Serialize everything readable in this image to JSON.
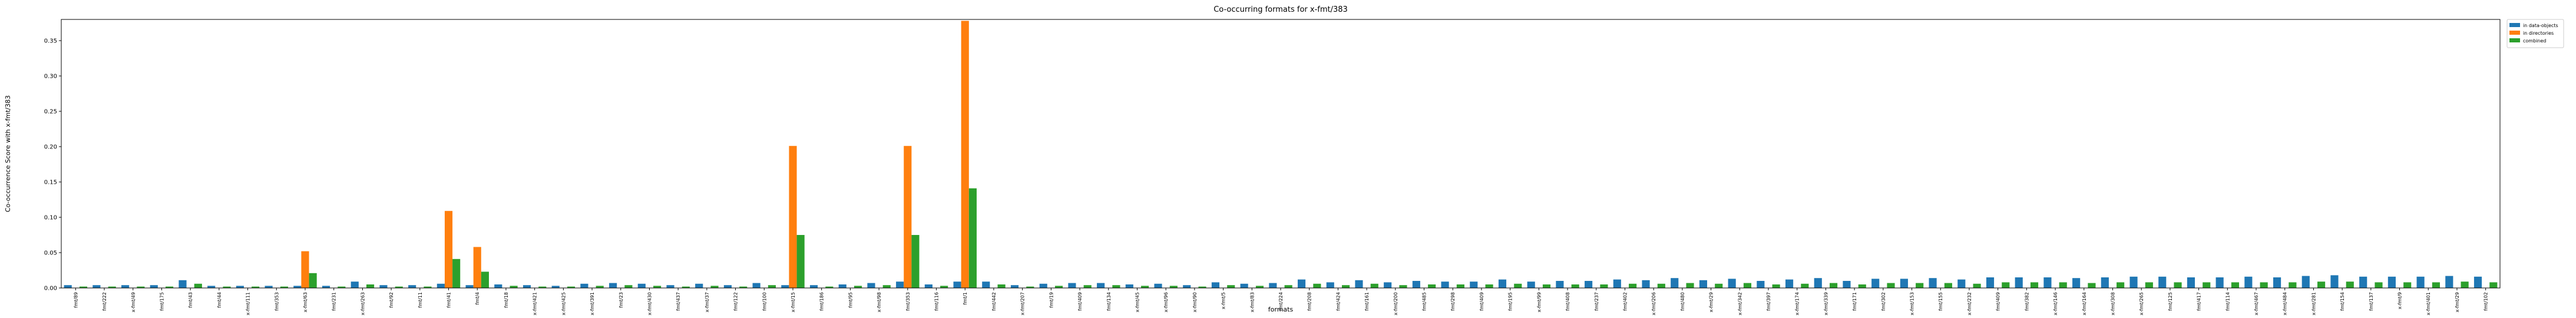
{
  "chart_data": {
    "type": "bar",
    "title": "Co-occurring formats for x-fmt/383",
    "xlabel": "formats",
    "ylabel": "Co-occurrence Score with x-fmt/383",
    "ylim": [
      0,
      0.38
    ],
    "yticks": [
      "0.00",
      "0.05",
      "0.10",
      "0.15",
      "0.20",
      "0.25",
      "0.30",
      "0.35"
    ],
    "ytick_values": [
      0,
      0.05,
      0.1,
      0.15,
      0.2,
      0.25,
      0.3,
      0.35
    ],
    "grid": false,
    "legend_position": "upper-right, outside plot",
    "colors": {
      "in_data_objects": "#1f77b4",
      "in_directories": "#ff7f0e",
      "combined": "#2ca02c"
    },
    "categories": [
      "fmt/89",
      "fmt/222",
      "x-fmt/49",
      "fmt/175",
      "fmt/43",
      "fmt/44",
      "x-fmt/111",
      "fmt/353",
      "x-fmt/63",
      "fmt/231",
      "x-fmt/263",
      "fmt/92",
      "fmt/11",
      "fmt/41",
      "fmt/4",
      "fmt/18",
      "x-fmt/421",
      "x-fmt/425",
      "x-fmt/391",
      "fmt/23",
      "x-fmt/430",
      "fmt/437",
      "x-fmt/37",
      "fmt/122",
      "fmt/100",
      "x-fmt/15",
      "fmt/186",
      "fmt/95",
      "x-fmt/98",
      "fmt/353",
      "fmt/116",
      "fmt/1",
      "fmt/442",
      "x-fmt/207",
      "fmt/19",
      "fmt/409",
      "fmt/134",
      "x-fmt/45",
      "x-fmt/96",
      "x-fmt/90",
      "x-fmt/5",
      "x-fmt/83",
      "fmt/224",
      "fmt/208",
      "fmt/424",
      "fmt/161",
      "x-fmt/200",
      "fmt/485",
      "fmt/298",
      "fmt/409",
      "fmt/195",
      "x-fmt/99",
      "fmt/408",
      "fmt/237",
      "fmt/402",
      "x-fmt/206",
      "fmt/480",
      "x-fmt/29",
      "x-fmt/342",
      "fmt/397",
      "x-fmt/174",
      "x-fmt/339",
      "fmt/171",
      "fmt/302",
      "x-fmt/153",
      "fmt/155",
      "x-fmt/232",
      "fmt/409",
      "fmt/382",
      "x-fmt/146",
      "x-fmt/164",
      "x-fmt/308",
      "x-fmt/265",
      "fmt/125",
      "fmt/417",
      "fmt/114",
      "x-fmt/467",
      "x-fmt/484",
      "x-fmt/281",
      "fmt/154",
      "fmt/137",
      "x-fmt/9",
      "x-fmt/401",
      "x-fmt/29",
      "fmt/102"
    ],
    "series": [
      {
        "name": "in data-objects",
        "values": [
          0.004,
          0.004,
          0.004,
          0.004,
          0.011,
          0.003,
          0.003,
          0.003,
          0.003,
          0.003,
          0.009,
          0.004,
          0.004,
          0.006,
          0.004,
          0.005,
          0.004,
          0.003,
          0.006,
          0.007,
          0.006,
          0.004,
          0.006,
          0.004,
          0.007,
          0.004,
          0.004,
          0.005,
          0.007,
          0.009,
          0.005,
          0.009,
          0.009,
          0.004,
          0.006,
          0.007,
          0.007,
          0.005,
          0.006,
          0.004,
          0.008,
          0.006,
          0.007,
          0.012,
          0.008,
          0.011,
          0.008,
          0.01,
          0.009,
          0.009,
          0.012,
          0.009,
          0.01,
          0.01,
          0.012,
          0.011,
          0.014,
          0.011,
          0.013,
          0.01,
          0.012,
          0.014,
          0.01,
          0.013,
          0.013,
          0.014,
          0.012,
          0.015,
          0.015,
          0.015,
          0.014,
          0.015,
          0.016,
          0.016,
          0.015,
          0.015,
          0.016,
          0.015,
          0.017,
          0.018,
          0.016,
          0.016,
          0.016,
          0.017,
          0.016
        ]
      },
      {
        "name": "in directories",
        "values": [
          0,
          0,
          0,
          0,
          0,
          0,
          0,
          0,
          0.052,
          0,
          0,
          0,
          0,
          0.109,
          0.058,
          0,
          0,
          0,
          0,
          0,
          0,
          0,
          0,
          0,
          0,
          0.201,
          0,
          0,
          0,
          0.201,
          0,
          0.378,
          0,
          0,
          0,
          0,
          0,
          0,
          0,
          0,
          0,
          0,
          0,
          0,
          0,
          0,
          0,
          0,
          0,
          0,
          0,
          0,
          0,
          0,
          0,
          0,
          0,
          0,
          0,
          0,
          0,
          0,
          0,
          0,
          0,
          0,
          0,
          0,
          0,
          0,
          0,
          0,
          0,
          0,
          0,
          0,
          0,
          0,
          0,
          0,
          0,
          0,
          0,
          0,
          0
        ]
      },
      {
        "name": "combined",
        "values": [
          0.002,
          0.002,
          0.002,
          0.002,
          0.006,
          0.002,
          0.002,
          0.002,
          0.021,
          0.002,
          0.005,
          0.002,
          0.002,
          0.041,
          0.023,
          0.003,
          0.002,
          0.002,
          0.003,
          0.004,
          0.003,
          0.002,
          0.003,
          0.002,
          0.004,
          0.075,
          0.002,
          0.003,
          0.004,
          0.075,
          0.003,
          0.141,
          0.005,
          0.002,
          0.003,
          0.004,
          0.004,
          0.003,
          0.003,
          0.002,
          0.004,
          0.003,
          0.004,
          0.006,
          0.004,
          0.006,
          0.004,
          0.005,
          0.005,
          0.005,
          0.006,
          0.005,
          0.005,
          0.005,
          0.006,
          0.006,
          0.007,
          0.006,
          0.007,
          0.005,
          0.006,
          0.007,
          0.005,
          0.007,
          0.007,
          0.007,
          0.006,
          0.008,
          0.008,
          0.008,
          0.007,
          0.008,
          0.008,
          0.008,
          0.008,
          0.008,
          0.008,
          0.008,
          0.009,
          0.009,
          0.008,
          0.008,
          0.008,
          0.009,
          0.008
        ]
      }
    ]
  }
}
